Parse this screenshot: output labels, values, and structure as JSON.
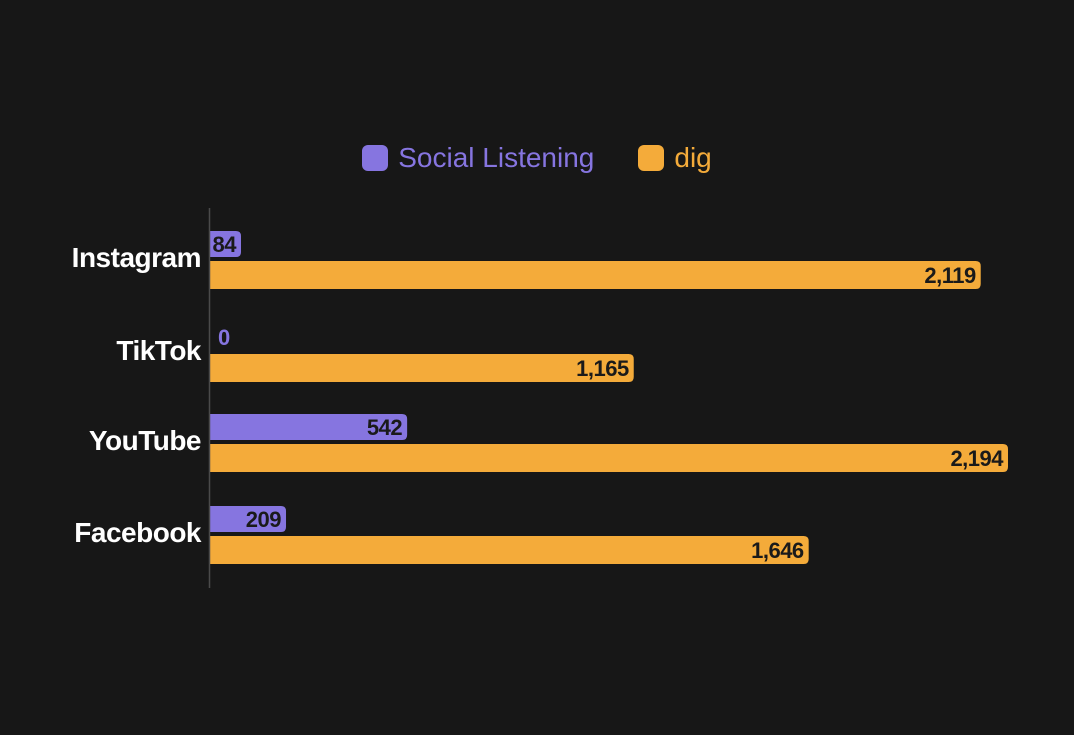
{
  "chart_data": {
    "type": "bar",
    "orientation": "horizontal",
    "title": "",
    "xlabel": "",
    "ylabel": "",
    "categories": [
      "Instagram",
      "TikTok",
      "YouTube",
      "Facebook"
    ],
    "series": [
      {
        "name": "Social Listening",
        "color": "#8675e0",
        "values": [
          84,
          0,
          542,
          209
        ],
        "labels": [
          "84",
          "0",
          "542",
          "209"
        ]
      },
      {
        "name": "dig",
        "color": "#f4ab3a",
        "values": [
          2119,
          1165,
          2194,
          1646
        ],
        "labels": [
          "2,119",
          "1,165",
          "2,194",
          "1,646"
        ]
      }
    ],
    "xlim": [
      0,
      2194
    ],
    "grid": false,
    "legend_position": "top-center"
  }
}
